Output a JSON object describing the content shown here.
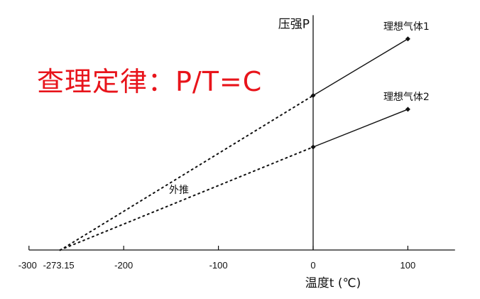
{
  "title": "查理定律：P/T=C",
  "chart_data": {
    "type": "line",
    "xlabel": "温度t (℃)",
    "ylabel": "压强P",
    "xlim": [
      -300,
      150
    ],
    "ylim": [
      0,
      2.28
    ],
    "x_ticks": [
      -300,
      -273.15,
      -200,
      -100,
      0,
      100
    ],
    "x_tick_labels": [
      "-300",
      "-273.15",
      "-200",
      "-100",
      "0",
      "100"
    ],
    "y_ticks": [],
    "grid": false,
    "annotation": "外推",
    "series": [
      {
        "name": "理想气体1",
        "x": [
          0,
          100
        ],
        "y": [
          1.5,
          2.05
        ],
        "extrapolate_to": -273.15
      },
      {
        "name": "理想气体2",
        "x": [
          0,
          100
        ],
        "y": [
          1.0,
          1.366
        ],
        "extrapolate_to": -273.15
      }
    ],
    "colors": {
      "title": "#e8141b",
      "lines": "#111111"
    }
  }
}
